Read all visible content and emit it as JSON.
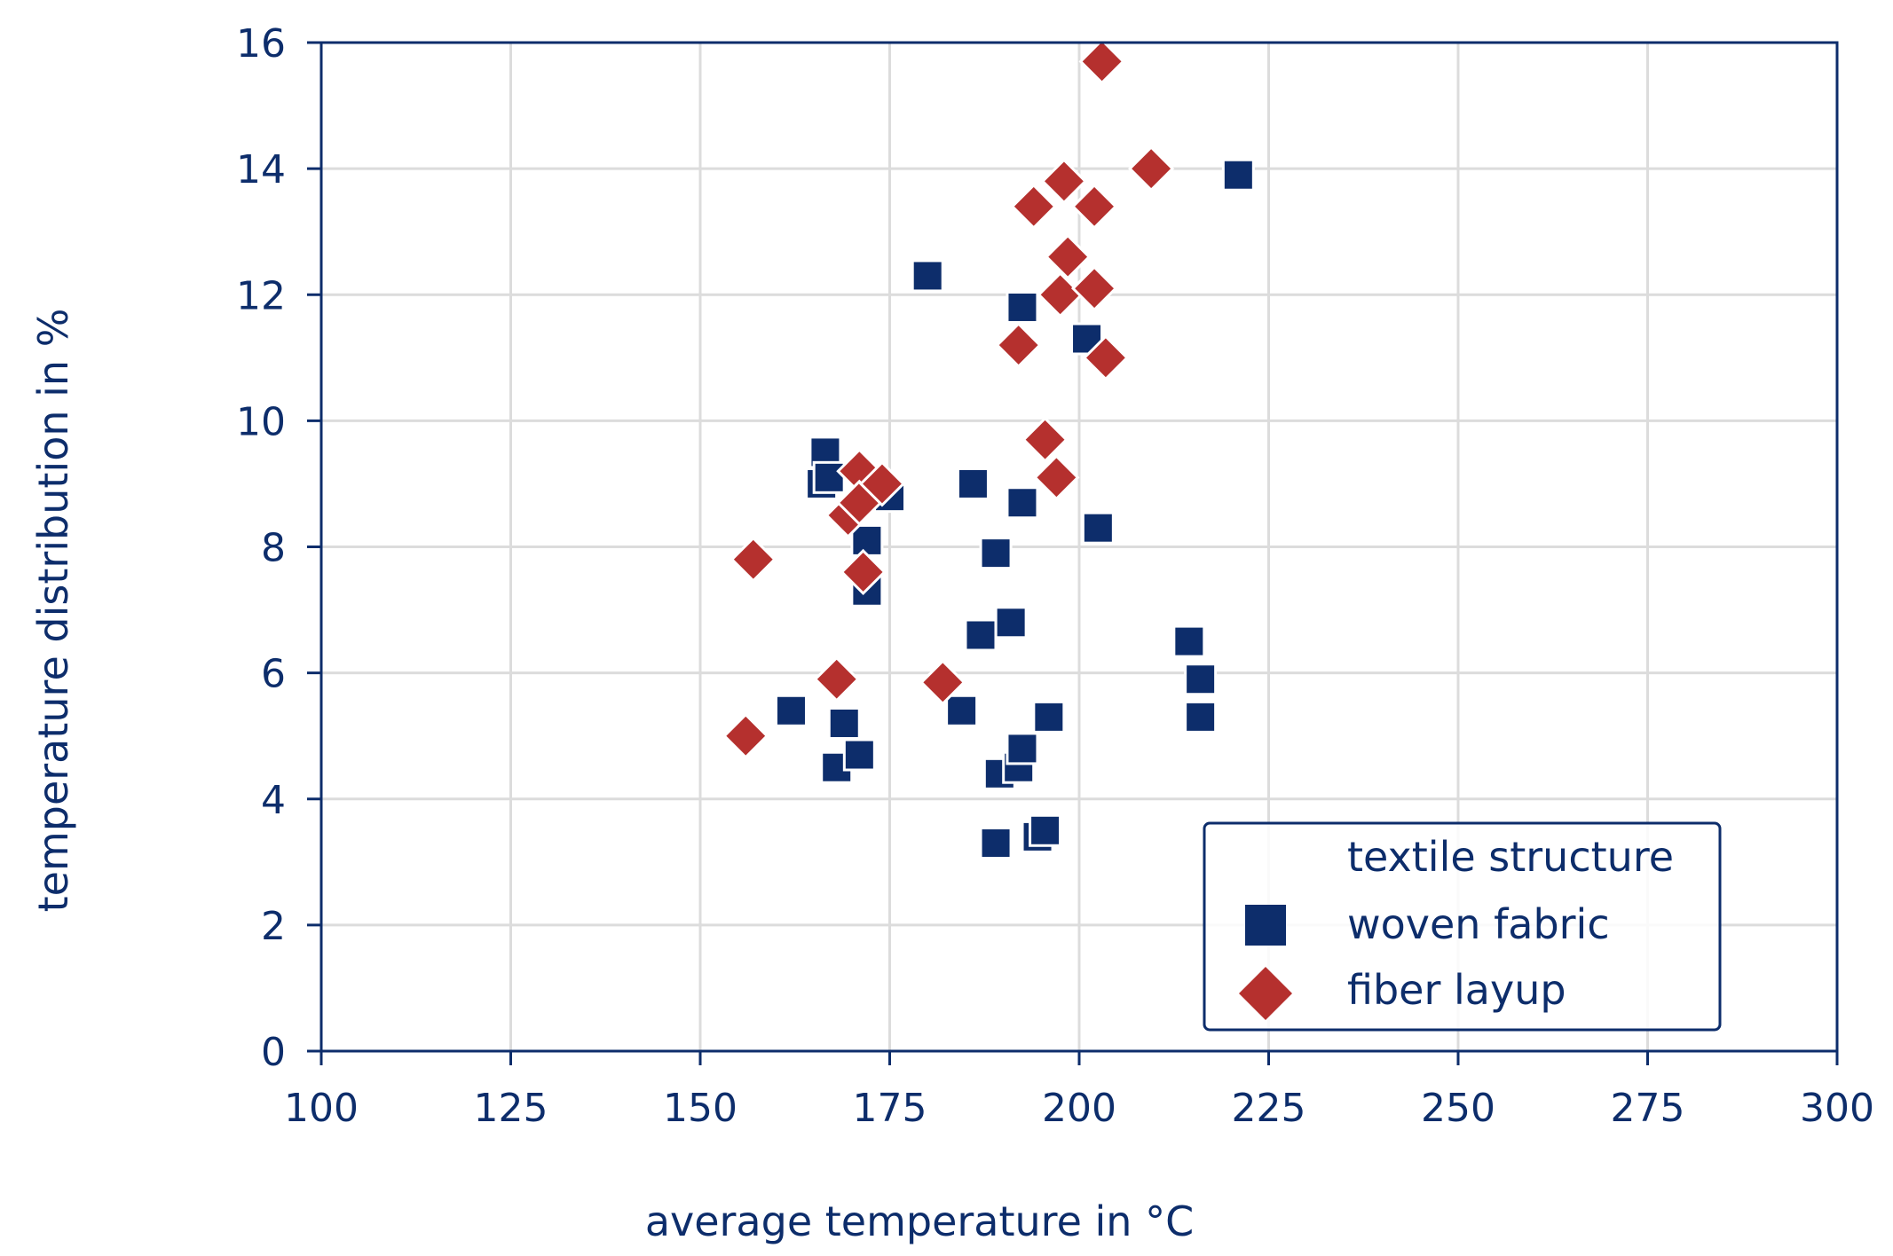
{
  "chart_data": {
    "type": "scatter",
    "xlabel": "average temperature in °C",
    "ylabel": "temperature distribution in %",
    "xlim": [
      100,
      300
    ],
    "ylim": [
      0,
      16
    ],
    "xticks": [
      100,
      125,
      150,
      175,
      200,
      225,
      250,
      275,
      300
    ],
    "yticks": [
      0,
      2,
      4,
      6,
      8,
      10,
      12,
      14,
      16
    ],
    "grid": true,
    "legend": {
      "title": "textile structure",
      "placement": "bottom-right"
    },
    "colors": {
      "axis": "#0d2d6b",
      "grid": "#dcdcdc",
      "woven": "#0d2d6b",
      "fiber": "#b5302e"
    },
    "series": [
      {
        "name": "woven fabric",
        "marker": "square",
        "points": [
          [
            162,
            5.4
          ],
          [
            166,
            9.0
          ],
          [
            166.5,
            9.5
          ],
          [
            167,
            9.1
          ],
          [
            168,
            4.5
          ],
          [
            169,
            5.2
          ],
          [
            171,
            4.7
          ],
          [
            172,
            8.1
          ],
          [
            172,
            7.3
          ],
          [
            175,
            8.8
          ],
          [
            180,
            12.3
          ],
          [
            184.5,
            5.4
          ],
          [
            186,
            9.0
          ],
          [
            187,
            6.6
          ],
          [
            189,
            7.9
          ],
          [
            189,
            3.3
          ],
          [
            189.5,
            4.4
          ],
          [
            191,
            6.8
          ],
          [
            192,
            4.5
          ],
          [
            192.5,
            4.8
          ],
          [
            192.5,
            11.8
          ],
          [
            192.5,
            8.7
          ],
          [
            194.5,
            3.4
          ],
          [
            195.5,
            3.5
          ],
          [
            196,
            5.3
          ],
          [
            201,
            11.3
          ],
          [
            202.5,
            8.3
          ],
          [
            214.5,
            6.5
          ],
          [
            216,
            5.9
          ],
          [
            216,
            5.3
          ],
          [
            221,
            13.9
          ]
        ]
      },
      {
        "name": "fiber layup",
        "marker": "diamond",
        "points": [
          [
            156,
            5.0
          ],
          [
            157,
            7.8
          ],
          [
            168,
            5.9
          ],
          [
            169.5,
            8.5
          ],
          [
            171,
            9.2
          ],
          [
            171,
            8.7
          ],
          [
            171.5,
            7.6
          ],
          [
            174,
            9.0
          ],
          [
            182,
            5.85
          ],
          [
            192,
            11.2
          ],
          [
            194,
            13.4
          ],
          [
            195.5,
            9.7
          ],
          [
            197,
            9.1
          ],
          [
            197.5,
            12.0
          ],
          [
            198,
            13.8
          ],
          [
            198.5,
            12.6
          ],
          [
            202,
            12.1
          ],
          [
            202,
            13.4
          ],
          [
            203,
            15.7
          ],
          [
            203.5,
            11.0
          ],
          [
            209.5,
            14.0
          ]
        ]
      }
    ]
  }
}
